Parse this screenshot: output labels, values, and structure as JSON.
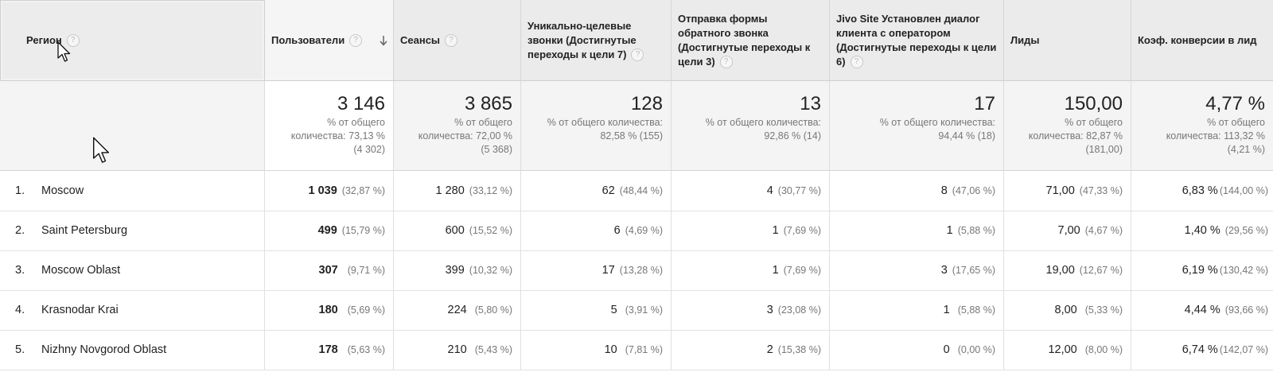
{
  "header": {
    "region": "Регион",
    "users": "Пользователи",
    "sessions": "Сеансы",
    "goal7": "Уникально-целевые звонки (Достигнутые переходы к цели 7)",
    "goal3": "Отправка формы обратного звонка (Достигнутые переходы к цели 3)",
    "goal6": "Jivo Site Установлен диалог клиента с оператором (Достигнутые переходы к цели 6)",
    "leads": "Лиды",
    "conv": "Коэф. конверсии в лид",
    "help": "?"
  },
  "totals": {
    "users": {
      "value": "3 146",
      "line1": "% от общего",
      "line2": "количества: 73,13 %",
      "line3": "(4 302)"
    },
    "sessions": {
      "value": "3 865",
      "line1": "% от общего",
      "line2": "количества: 72,00 %",
      "line3": "(5 368)"
    },
    "goal7": {
      "value": "128",
      "line1": "% от общего количества:",
      "line2": "82,58 % (155)"
    },
    "goal3": {
      "value": "13",
      "line1": "% от общего количества:",
      "line2": "92,86 % (14)"
    },
    "goal6": {
      "value": "17",
      "line1": "% от общего количества:",
      "line2": "94,44 % (18)"
    },
    "leads": {
      "value": "150,00",
      "line1": "% от общего",
      "line2": "количества: 82,87 %",
      "line3": "(181,00)"
    },
    "conv": {
      "value": "4,77 %",
      "line1": "% от общего",
      "line2": "количества: 113,32 %",
      "line3": "(4,21 %)"
    }
  },
  "rows": [
    {
      "idx": "1.",
      "region": "Moscow",
      "users": "1 039",
      "users_pct": "(32,87 %)",
      "sessions": "1 280",
      "sessions_pct": "(33,12 %)",
      "goal7": "62",
      "goal7_pct": "(48,44 %)",
      "goal3": "4",
      "goal3_pct": "(30,77 %)",
      "goal6": "8",
      "goal6_pct": "(47,06 %)",
      "leads": "71,00",
      "leads_pct": "(47,33 %)",
      "conv": "6,83 %",
      "conv_pct": "(144,00 %)"
    },
    {
      "idx": "2.",
      "region": "Saint Petersburg",
      "users": "499",
      "users_pct": "(15,79 %)",
      "sessions": "600",
      "sessions_pct": "(15,52 %)",
      "goal7": "6",
      "goal7_pct": "(4,69 %)",
      "goal3": "1",
      "goal3_pct": "(7,69 %)",
      "goal6": "1",
      "goal6_pct": "(5,88 %)",
      "leads": "7,00",
      "leads_pct": "(4,67 %)",
      "conv": "1,40 %",
      "conv_pct": "(29,56 %)"
    },
    {
      "idx": "3.",
      "region": "Moscow Oblast",
      "users": "307",
      "users_pct": "(9,71 %)",
      "sessions": "399",
      "sessions_pct": "(10,32 %)",
      "goal7": "17",
      "goal7_pct": "(13,28 %)",
      "goal3": "1",
      "goal3_pct": "(7,69 %)",
      "goal6": "3",
      "goal6_pct": "(17,65 %)",
      "leads": "19,00",
      "leads_pct": "(12,67 %)",
      "conv": "6,19 %",
      "conv_pct": "(130,42 %)"
    },
    {
      "idx": "4.",
      "region": "Krasnodar Krai",
      "users": "180",
      "users_pct": "(5,69 %)",
      "sessions": "224",
      "sessions_pct": "(5,80 %)",
      "goal7": "5",
      "goal7_pct": "(3,91 %)",
      "goal3": "3",
      "goal3_pct": "(23,08 %)",
      "goal6": "1",
      "goal6_pct": "(5,88 %)",
      "leads": "8,00",
      "leads_pct": "(5,33 %)",
      "conv": "4,44 %",
      "conv_pct": "(93,66 %)"
    },
    {
      "idx": "5.",
      "region": "Nizhny Novgorod Oblast",
      "users": "178",
      "users_pct": "(5,63 %)",
      "sessions": "210",
      "sessions_pct": "(5,43 %)",
      "goal7": "10",
      "goal7_pct": "(7,81 %)",
      "goal3": "2",
      "goal3_pct": "(15,38 %)",
      "goal6": "0",
      "goal6_pct": "(0,00 %)",
      "leads": "12,00",
      "leads_pct": "(8,00 %)",
      "conv": "6,74 %",
      "conv_pct": "(142,07 %)"
    }
  ]
}
